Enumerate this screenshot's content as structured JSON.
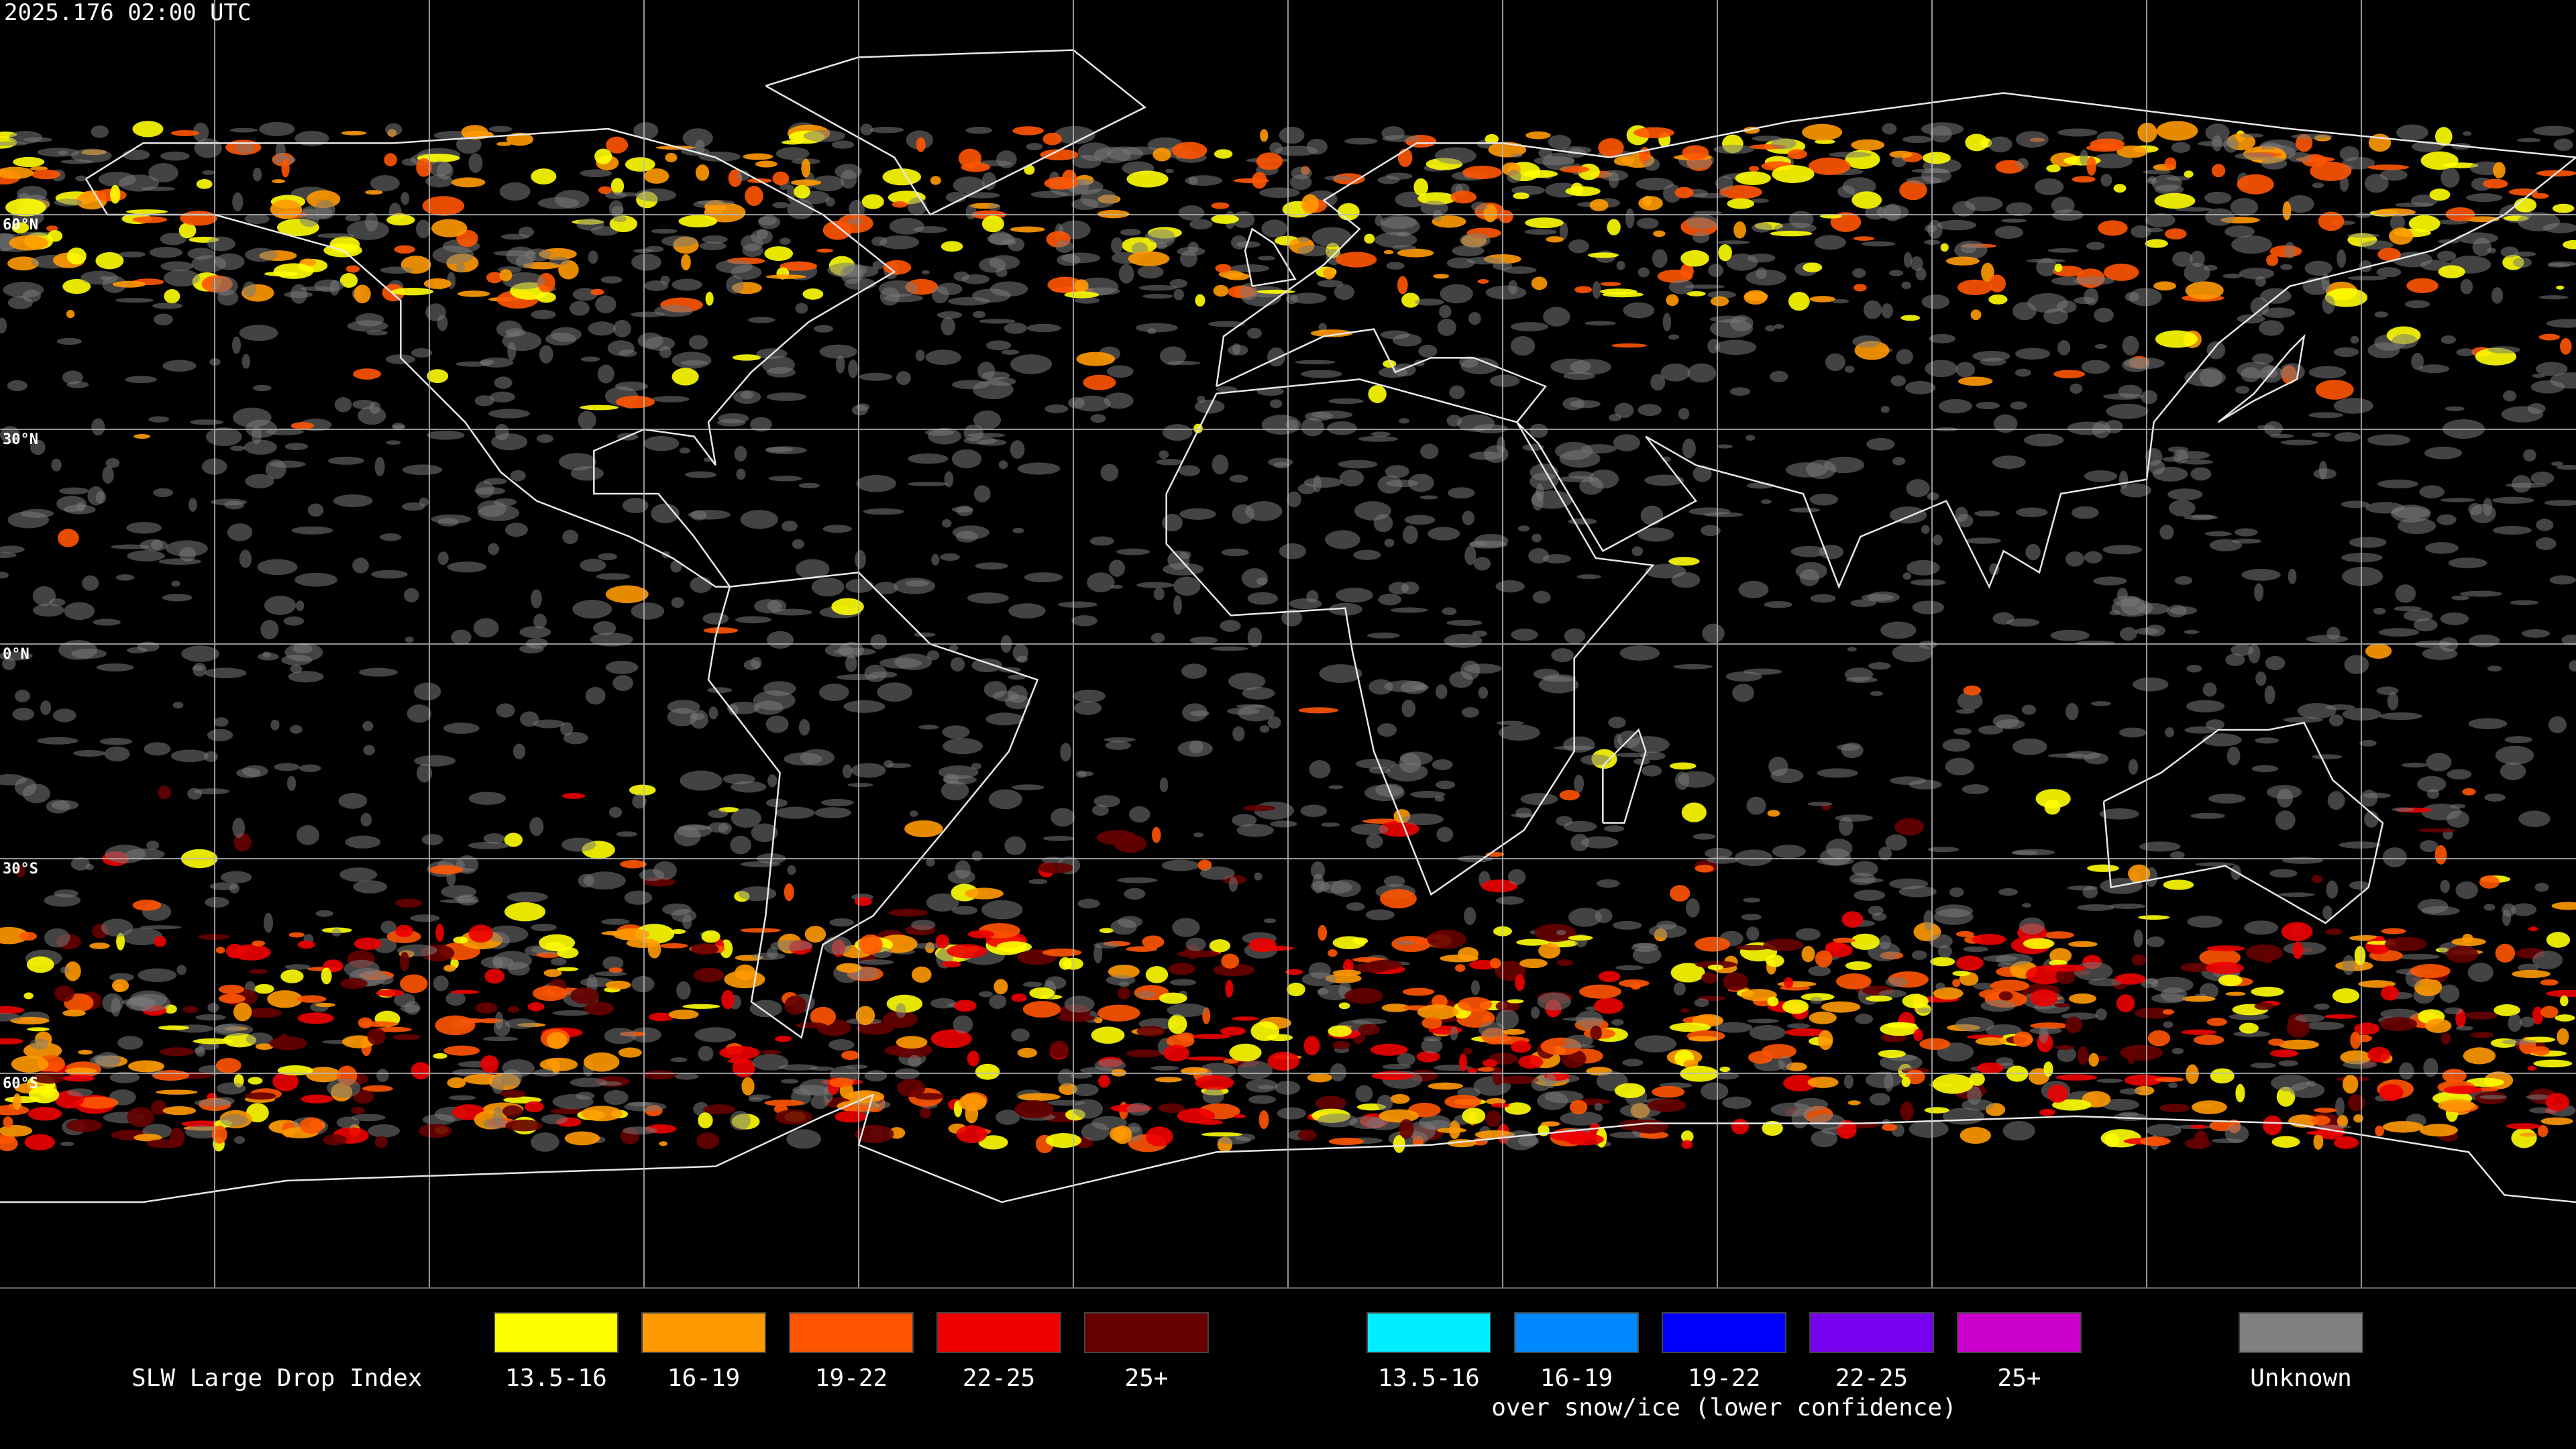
{
  "header": {
    "timestamp": "2025.176 02:00 UTC"
  },
  "map": {
    "lat_labels": [
      "60°N",
      "30°N",
      "0°N",
      "30°S",
      "60°S"
    ]
  },
  "legend": {
    "title": "SLW Large Drop Index",
    "groups": [
      {
        "items": [
          {
            "label": "13.5-16",
            "color": "#ffff00"
          },
          {
            "label": "16-19",
            "color": "#ff9900"
          },
          {
            "label": "19-22",
            "color": "#ff5500"
          },
          {
            "label": "22-25",
            "color": "#ee0000"
          },
          {
            "label": "25+",
            "color": "#660000"
          }
        ]
      },
      {
        "caption": "over snow/ice (lower confidence)",
        "items": [
          {
            "label": "13.5-16",
            "color": "#00eeff"
          },
          {
            "label": "16-19",
            "color": "#0088ff"
          },
          {
            "label": "19-22",
            "color": "#0000ff"
          },
          {
            "label": "22-25",
            "color": "#7700ee"
          },
          {
            "label": "25+",
            "color": "#cc00cc"
          }
        ]
      },
      {
        "items": [
          {
            "label": "Unknown",
            "color": "#808080"
          }
        ]
      }
    ]
  }
}
